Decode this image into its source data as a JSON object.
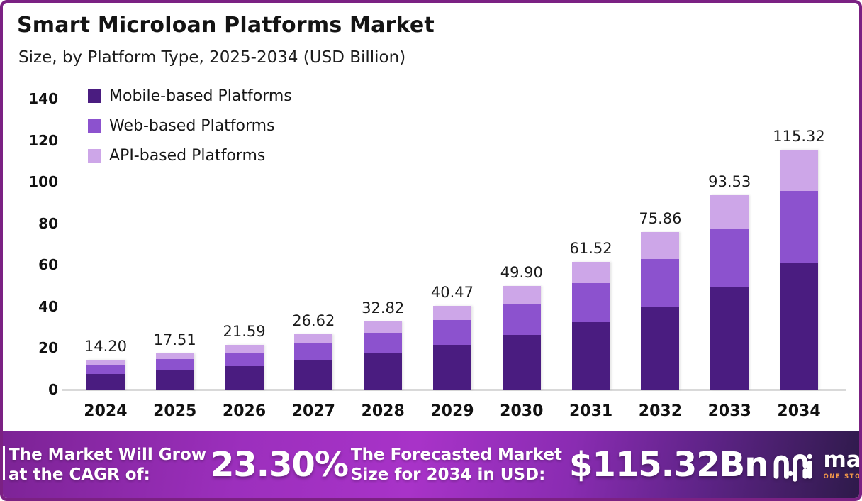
{
  "header": {
    "title": "Smart Microloan Platforms Market",
    "subtitle": "Size, by Platform Type, 2025-2034 (USD Billion)"
  },
  "chart_data": {
    "type": "bar",
    "stacked": true,
    "title": "Smart Microloan Platforms Market",
    "xlabel": "",
    "ylabel": "USD Billion",
    "ylim": [
      0,
      140
    ],
    "yticks": [
      0,
      20,
      40,
      60,
      80,
      100,
      120,
      140
    ],
    "grid": false,
    "legend_position": "top-left",
    "categories": [
      "2024",
      "2025",
      "2026",
      "2027",
      "2028",
      "2029",
      "2030",
      "2031",
      "2032",
      "2033",
      "2034"
    ],
    "totals": [
      14.2,
      17.51,
      21.59,
      26.62,
      32.82,
      40.47,
      49.9,
      61.52,
      75.86,
      93.53,
      115.32
    ],
    "total_labels": [
      "14.20",
      "17.51",
      "21.59",
      "26.62",
      "32.82",
      "40.47",
      "49.90",
      "61.52",
      "75.86",
      "93.53",
      "115.32"
    ],
    "series": [
      {
        "name": "Mobile-based Platforms",
        "color": "#4a1c80",
        "values": [
          7.5,
          9.25,
          11.4,
          14.06,
          17.33,
          21.37,
          26.35,
          32.48,
          40.05,
          49.38,
          60.89
        ]
      },
      {
        "name": "Web-based Platforms",
        "color": "#8c52ce",
        "values": [
          4.29,
          5.29,
          6.52,
          8.04,
          9.91,
          12.22,
          15.07,
          18.58,
          22.91,
          28.25,
          34.83
        ]
      },
      {
        "name": "API-based Platforms",
        "color": "#cda6e8",
        "values": [
          2.41,
          2.97,
          3.67,
          4.52,
          5.58,
          6.88,
          8.48,
          10.46,
          12.9,
          15.9,
          19.6
        ]
      }
    ]
  },
  "footer": {
    "cagr_label_line1": "The Market Will Grow",
    "cagr_label_line2": "at the CAGR of:",
    "cagr_value": "23.30%",
    "forecast_label_line1": "The Forecasted Market",
    "forecast_label_line2": "Size for 2034 in USD:",
    "forecast_value": "$115.32Bn",
    "brand": {
      "name": "market.us",
      "tagline": "ONE STOP SHOP FOR THE REPORTS"
    }
  },
  "colors": {
    "card_border": "#7b2183",
    "mobile_series": "#4a1c80",
    "web_series": "#8c52ce",
    "api_series": "#cda6e8",
    "axis_line": "#d9d9d9",
    "banner_gradient_left": "#7c2395",
    "banner_gradient_mid": "#a833c8",
    "banner_gradient_right": "#2e1a4a",
    "brand_tagline": "#f2984a"
  }
}
